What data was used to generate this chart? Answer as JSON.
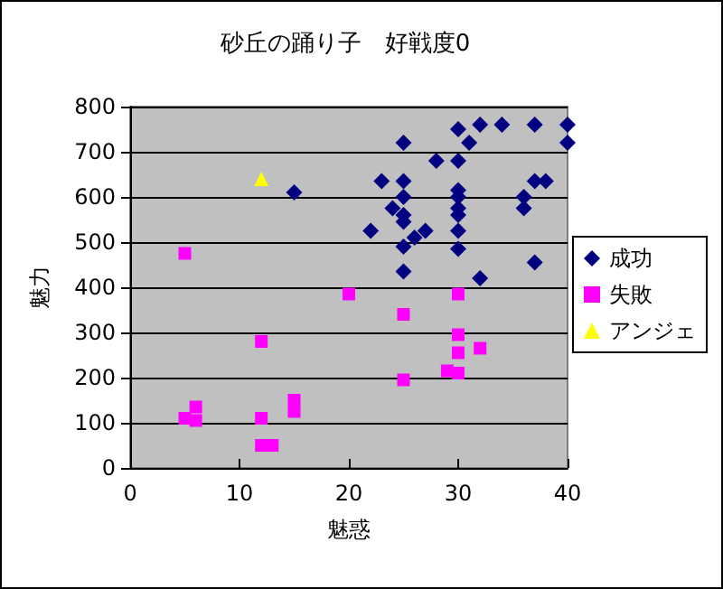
{
  "chart_data": {
    "type": "scatter",
    "title": "砂丘の踊り子　好戦度0",
    "xlabel": "魅惑",
    "ylabel": "魅力",
    "xlim": [
      0,
      40
    ],
    "xticks": [
      0,
      10,
      20,
      30,
      40
    ],
    "ylim": [
      0,
      800
    ],
    "yticks": [
      0,
      100,
      200,
      300,
      400,
      500,
      600,
      700,
      800
    ],
    "grid": "y",
    "legend": "right",
    "series": [
      {
        "name": "成功",
        "color": "#000080",
        "marker": "diamond",
        "x": [
          15,
          30,
          32,
          34,
          37,
          40,
          25,
          31,
          40,
          28,
          30,
          23,
          25,
          37,
          38,
          30,
          30,
          25,
          36,
          36,
          24,
          30,
          25,
          30,
          25,
          22,
          26,
          27,
          30,
          25,
          30,
          37,
          25,
          32
        ],
        "values": [
          610,
          750,
          760,
          760,
          760,
          760,
          720,
          720,
          720,
          680,
          680,
          635,
          635,
          635,
          635,
          615,
          600,
          600,
          600,
          575,
          575,
          575,
          560,
          560,
          545,
          525,
          510,
          525,
          525,
          490,
          485,
          455,
          435,
          420
        ]
      },
      {
        "name": "失敗",
        "color": "#ff00ff",
        "marker": "square",
        "x": [
          5,
          12,
          6,
          5,
          6,
          12,
          12,
          13,
          15,
          15,
          20,
          30,
          25,
          30,
          30,
          32,
          29,
          30,
          25
        ],
        "values": [
          475,
          280,
          135,
          110,
          105,
          110,
          50,
          50,
          150,
          125,
          385,
          385,
          340,
          295,
          255,
          265,
          215,
          210,
          195
        ]
      },
      {
        "name": "アンジェ",
        "color": "#ffff00",
        "marker": "triangle",
        "x": [
          12
        ],
        "values": [
          640
        ]
      }
    ]
  }
}
